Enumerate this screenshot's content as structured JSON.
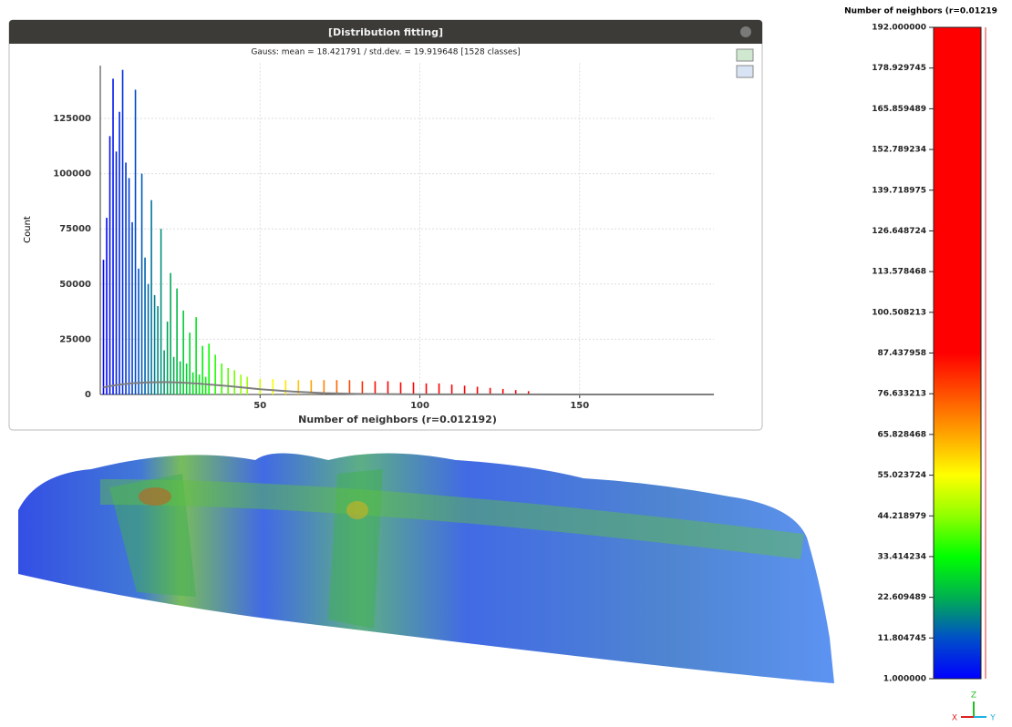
{
  "window": {
    "title": "[Distribution fitting]",
    "subtitle": "Gauss: mean = 18.421791 / std.dev. = 19.919648 [1528 classes]",
    "chart": {
      "type": "bar",
      "x_label": "Number of neighbors (r=0.012192)",
      "y_label": "Count",
      "x": [
        1,
        2,
        3,
        4,
        5,
        6,
        7,
        8,
        9,
        10,
        11,
        12,
        13,
        14,
        15,
        16,
        17,
        18,
        19,
        20,
        21,
        22,
        23,
        24,
        25,
        26,
        27,
        28,
        29,
        30,
        31,
        32,
        33,
        34,
        36,
        38,
        40,
        42,
        44,
        46,
        50,
        54,
        58,
        62,
        66,
        70,
        74,
        78,
        82,
        86,
        90,
        94,
        98,
        102,
        106,
        110,
        114,
        118,
        122,
        126,
        130,
        134
      ],
      "values": [
        61000,
        80000,
        117000,
        143000,
        110000,
        128000,
        147000,
        105000,
        98000,
        78000,
        138000,
        57000,
        100000,
        62000,
        50000,
        88000,
        45000,
        40000,
        75000,
        20000,
        33000,
        55000,
        17000,
        48000,
        15000,
        38000,
        14000,
        28000,
        10000,
        35000,
        9000,
        22000,
        8000,
        23000,
        18000,
        14000,
        12000,
        11000,
        9000,
        8000,
        7000,
        7000,
        6500,
        6500,
        6500,
        6500,
        6500,
        6500,
        6000,
        6000,
        6000,
        5500,
        5500,
        5000,
        5000,
        4500,
        4000,
        3500,
        3000,
        2500,
        2000,
        1500
      ],
      "xlim": [
        1,
        192
      ],
      "ylim": [
        0,
        150000
      ],
      "xticks": [
        50,
        100,
        150
      ],
      "yticks": [
        0,
        25000,
        50000,
        75000,
        100000,
        125000
      ],
      "grid": true,
      "fit": {
        "x": [
          1,
          5,
          10,
          15,
          20,
          25,
          30,
          40,
          50,
          60,
          70,
          80,
          100,
          192
        ],
        "values": [
          3200,
          4300,
          5100,
          5500,
          5600,
          5400,
          5000,
          3800,
          2400,
          1300,
          600,
          250,
          40,
          0
        ],
        "color": "#7f7f7f"
      }
    }
  },
  "color_scale": {
    "title": "Number of neighbors (r=0.01219",
    "ticks": [
      {
        "value": 192,
        "label": "192.000000"
      },
      178.929745,
      165.859489,
      152.789234,
      139.718975,
      126.648724,
      113.578468,
      100.508213,
      87.437958,
      76.633213,
      65.828468,
      55.023724,
      44.218979,
      33.414234,
      22.609489,
      11.804745,
      {
        "value": 1,
        "label": "1.000000"
      }
    ],
    "colors": [
      "#ff0000",
      "#ff0000",
      "#ff0000",
      "#ff0000",
      "#ff0000",
      "#ff0000",
      "#ff0000",
      "#ff0000",
      "#ff0000",
      "#ff5000",
      "#ffa500",
      "#ffff00",
      "#90ff00",
      "#00ff00",
      "#00b050",
      "#0050c8",
      "#0000ff"
    ]
  },
  "axes": [
    "Z",
    "X",
    "Y"
  ]
}
